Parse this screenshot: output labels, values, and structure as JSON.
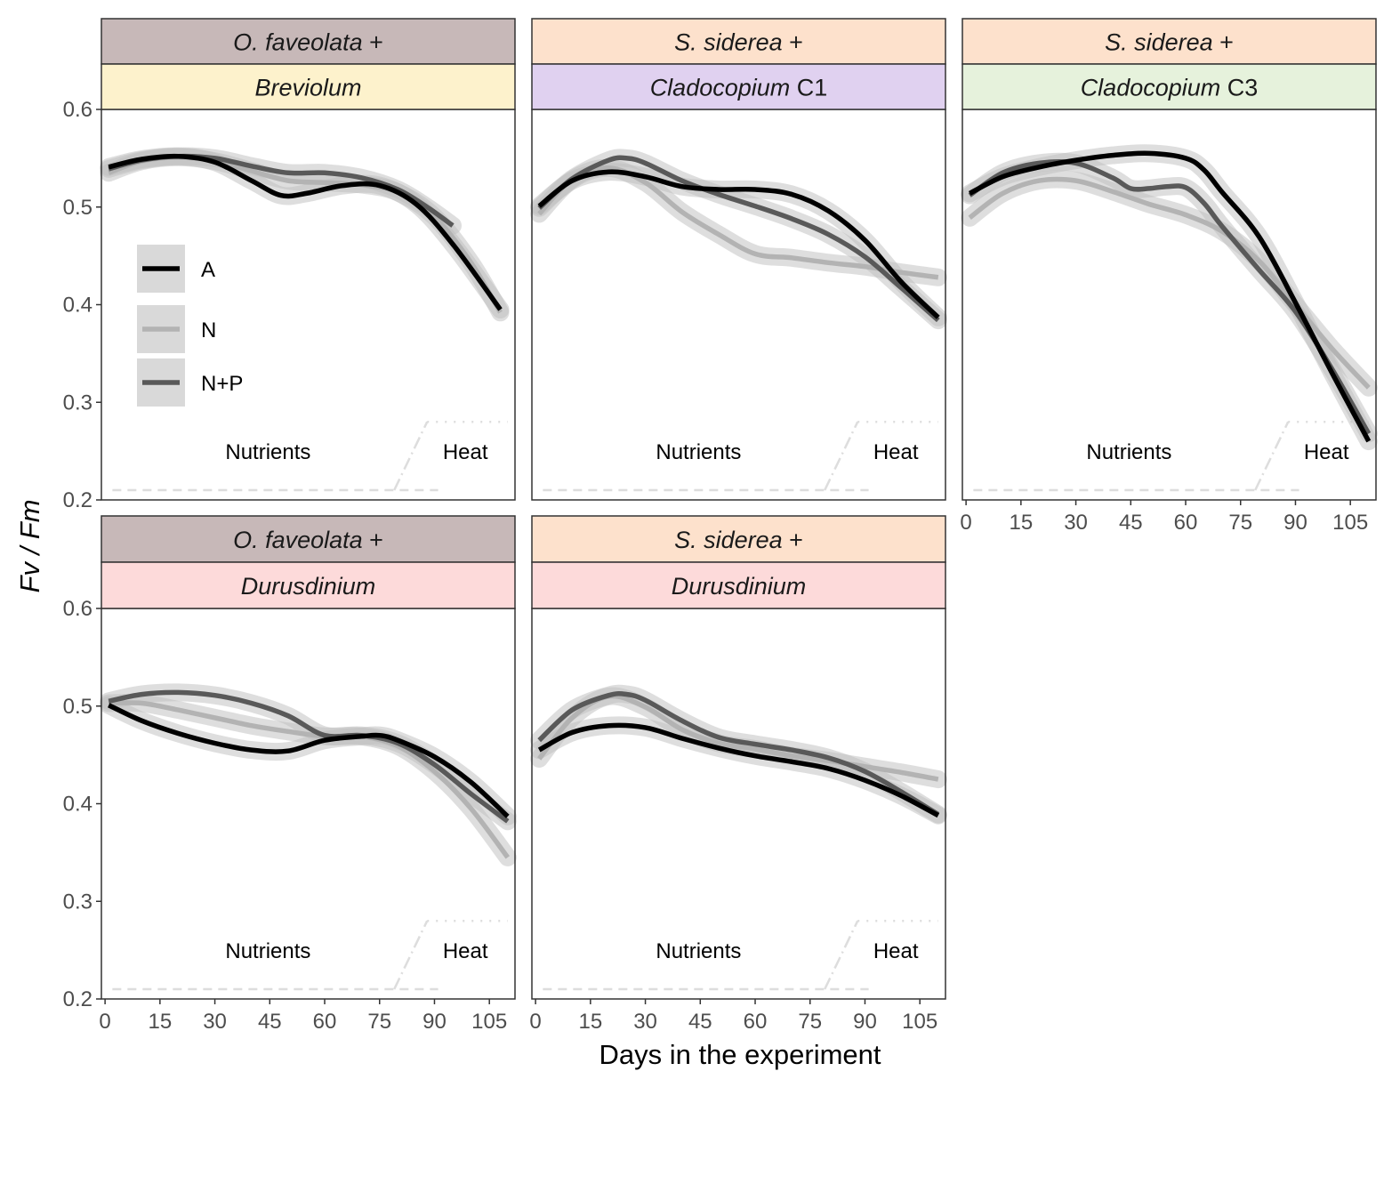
{
  "chart_data": {
    "type": "line",
    "ylabel": "Fv / Fm",
    "xlabel": "Days in the experiment",
    "x_ticks": [
      0,
      15,
      30,
      45,
      60,
      75,
      90,
      105
    ],
    "y_ticks": [
      0.2,
      0.3,
      0.4,
      0.5,
      0.6
    ],
    "xlim": [
      -1,
      112
    ],
    "ylim": [
      0.2,
      0.6
    ],
    "legend": {
      "placement": "inside-top-left",
      "entries": [
        {
          "label": "A",
          "color": "#000000"
        },
        {
          "label": "N",
          "color": "#b3b3b3"
        },
        {
          "label": "N+P",
          "color": "#595959"
        }
      ]
    },
    "phases": [
      {
        "label": "Nutrients",
        "level_y": 0.21,
        "x_start": 2,
        "x_end": 91
      },
      {
        "label": "Heat",
        "level_y": 0.28,
        "x_start": 79,
        "x_end": 110
      }
    ],
    "panels": [
      {
        "host": "O. faveolata",
        "host_suffix": " +",
        "symbiont": "Breviolum",
        "symbiont_suffix": "",
        "host_color": "#c7b8b8",
        "symbiont_color": "#fdf2cc",
        "series": [
          {
            "name": "A",
            "x": [
              1,
              10,
              20,
              30,
              40,
              48,
              55,
              65,
              75,
              85,
              95,
              108
            ],
            "y": [
              0.541,
              0.549,
              0.552,
              0.546,
              0.527,
              0.512,
              0.514,
              0.522,
              0.522,
              0.503,
              0.462,
              0.395
            ]
          },
          {
            "name": "N",
            "x": [
              1,
              10,
              20,
              30,
              40,
              50,
              60,
              70,
              80,
              90,
              100,
              108
            ],
            "y": [
              0.535,
              0.547,
              0.551,
              0.547,
              0.537,
              0.527,
              0.525,
              0.523,
              0.515,
              0.49,
              0.443,
              0.392
            ]
          },
          {
            "name": "N+P",
            "x": [
              1,
              10,
              20,
              30,
              40,
              50,
              60,
              70,
              80,
              88,
              95
            ],
            "y": [
              0.539,
              0.548,
              0.552,
              0.55,
              0.542,
              0.535,
              0.535,
              0.53,
              0.518,
              0.5,
              0.481
            ]
          }
        ]
      },
      {
        "host": "S. siderea",
        "host_suffix": " +",
        "symbiont": "Cladocopium",
        "symbiont_suffix": " C1",
        "host_color": "#fde1cc",
        "symbiont_color": "#e0d1f0",
        "series": [
          {
            "name": "A",
            "x": [
              1,
              10,
              20,
              30,
              40,
              50,
              60,
              70,
              80,
              90,
              100,
              110
            ],
            "y": [
              0.501,
              0.527,
              0.536,
              0.531,
              0.521,
              0.518,
              0.518,
              0.513,
              0.496,
              0.466,
              0.423,
              0.387
            ]
          },
          {
            "name": "N",
            "x": [
              1,
              10,
              20,
              30,
              40,
              50,
              60,
              70,
              80,
              90,
              100,
              110
            ],
            "y": [
              0.493,
              0.528,
              0.54,
              0.525,
              0.495,
              0.472,
              0.452,
              0.448,
              0.443,
              0.439,
              0.433,
              0.428
            ]
          },
          {
            "name": "N+P",
            "x": [
              1,
              10,
              20,
              25,
              30,
              40,
              50,
              60,
              70,
              80,
              90,
              100,
              110
            ],
            "y": [
              0.499,
              0.529,
              0.548,
              0.55,
              0.545,
              0.527,
              0.513,
              0.501,
              0.488,
              0.472,
              0.449,
              0.417,
              0.384
            ]
          }
        ]
      },
      {
        "host": "S. siderea",
        "host_suffix": " +",
        "symbiont": "Cladocopium",
        "symbiont_suffix": " C3",
        "host_color": "#fde1cc",
        "symbiont_color": "#e6f2dc",
        "series": [
          {
            "name": "A",
            "x": [
              1,
              10,
              20,
              30,
              40,
              50,
              60,
              65,
              70,
              80,
              90,
              100,
              110
            ],
            "y": [
              0.514,
              0.531,
              0.541,
              0.548,
              0.553,
              0.555,
              0.55,
              0.538,
              0.515,
              0.47,
              0.402,
              0.33,
              0.26
            ]
          },
          {
            "name": "N",
            "x": [
              1,
              10,
              20,
              30,
              40,
              50,
              60,
              70,
              80,
              90,
              100,
              110
            ],
            "y": [
              0.489,
              0.514,
              0.527,
              0.527,
              0.516,
              0.503,
              0.492,
              0.475,
              0.445,
              0.4,
              0.355,
              0.315
            ]
          },
          {
            "name": "N+P",
            "x": [
              1,
              10,
              20,
              30,
              40,
              45,
              50,
              55,
              60,
              65,
              70,
              80,
              90,
              100,
              110
            ],
            "y": [
              0.512,
              0.535,
              0.545,
              0.545,
              0.53,
              0.519,
              0.519,
              0.521,
              0.52,
              0.504,
              0.48,
              0.436,
              0.393,
              0.334,
              0.268
            ]
          }
        ]
      },
      {
        "host": "O. faveolata",
        "host_suffix": " +",
        "symbiont": "Durusdinium",
        "symbiont_suffix": "",
        "host_color": "#c7b8b8",
        "symbiont_color": "#fddada",
        "series": [
          {
            "name": "A",
            "x": [
              1,
              10,
              20,
              30,
              40,
              50,
              60,
              70,
              75,
              80,
              90,
              100,
              110
            ],
            "y": [
              0.501,
              0.485,
              0.472,
              0.462,
              0.455,
              0.454,
              0.465,
              0.469,
              0.47,
              0.465,
              0.448,
              0.422,
              0.387
            ]
          },
          {
            "name": "N",
            "x": [
              1,
              10,
              20,
              30,
              40,
              50,
              60,
              70,
              80,
              90,
              100,
              110
            ],
            "y": [
              0.503,
              0.503,
              0.496,
              0.488,
              0.48,
              0.474,
              0.469,
              0.469,
              0.459,
              0.433,
              0.395,
              0.345
            ]
          },
          {
            "name": "N+P",
            "x": [
              1,
              10,
              20,
              30,
              40,
              50,
              60,
              70,
              80,
              90,
              100,
              110
            ],
            "y": [
              0.505,
              0.512,
              0.514,
              0.511,
              0.503,
              0.49,
              0.47,
              0.47,
              0.462,
              0.44,
              0.41,
              0.382
            ]
          }
        ]
      },
      {
        "host": "S. siderea",
        "host_suffix": " +",
        "symbiont": "Durusdinium",
        "symbiont_suffix": "",
        "host_color": "#fde1cc",
        "symbiont_color": "#fddada",
        "series": [
          {
            "name": "A",
            "x": [
              1,
              10,
              20,
              30,
              40,
              50,
              60,
              70,
              80,
              90,
              100,
              110
            ],
            "y": [
              0.455,
              0.473,
              0.48,
              0.478,
              0.467,
              0.457,
              0.449,
              0.443,
              0.436,
              0.424,
              0.408,
              0.388
            ]
          },
          {
            "name": "N",
            "x": [
              1,
              10,
              20,
              30,
              40,
              50,
              60,
              70,
              80,
              90,
              100,
              110
            ],
            "y": [
              0.446,
              0.488,
              0.51,
              0.499,
              0.476,
              0.462,
              0.456,
              0.449,
              0.444,
              0.438,
              0.432,
              0.425
            ]
          },
          {
            "name": "N+P",
            "x": [
              1,
              10,
              20,
              25,
              30,
              40,
              50,
              60,
              70,
              80,
              90,
              100,
              110
            ],
            "y": [
              0.465,
              0.496,
              0.511,
              0.512,
              0.506,
              0.485,
              0.468,
              0.461,
              0.455,
              0.447,
              0.433,
              0.412,
              0.389
            ]
          }
        ]
      }
    ]
  }
}
